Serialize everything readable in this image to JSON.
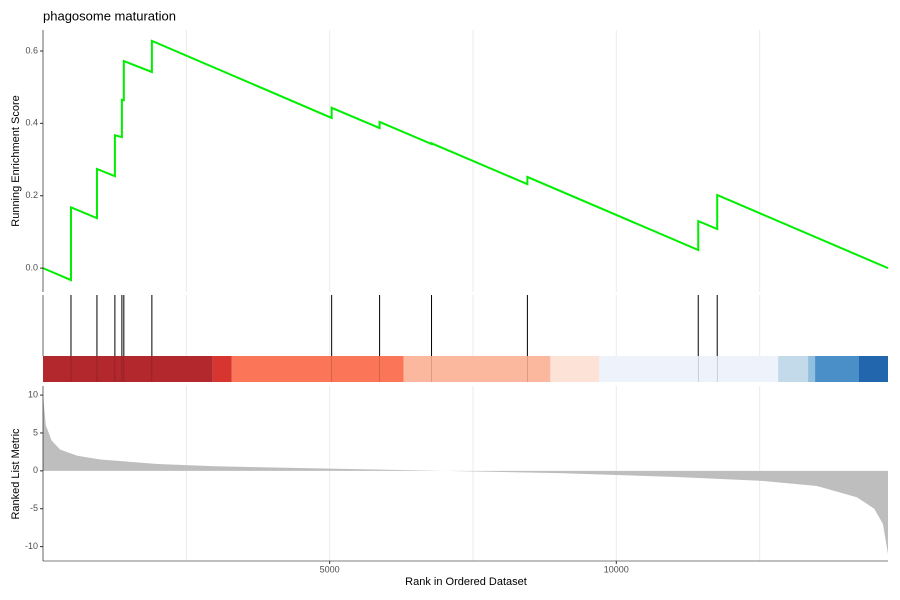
{
  "chart_data": [
    {
      "type": "line",
      "title": "phagosome maturation",
      "ylabel": "Running Enrichment Score",
      "color": "#00ee00",
      "x": [
        0,
        488,
        488,
        941,
        941,
        1254,
        1254,
        1376,
        1376,
        1410,
        1410,
        1899,
        1899,
        5035,
        5035,
        5871,
        5871,
        6777,
        6777,
        8449,
        8449,
        11429,
        11429,
        11760,
        11760,
        14739
      ],
      "y": [
        0.0,
        -0.033,
        0.168,
        0.138,
        0.274,
        0.254,
        0.367,
        0.362,
        0.465,
        0.464,
        0.572,
        0.542,
        0.628,
        0.415,
        0.443,
        0.387,
        0.404,
        0.343,
        0.345,
        0.232,
        0.252,
        0.05,
        0.13,
        0.108,
        0.202,
        0.0
      ],
      "xlim": [
        0,
        14739
      ],
      "ylim": [
        -0.066,
        0.658
      ],
      "yticks": [
        {
          "value": 0,
          "label": "0.0"
        },
        {
          "value": 0.2,
          "label": "0.2"
        },
        {
          "value": 0.4,
          "label": "0.4"
        },
        {
          "value": 0.6,
          "label": "0.6"
        }
      ],
      "x_grid": [
        2500,
        5000,
        7500,
        10000,
        12500
      ]
    },
    {
      "type": "rug",
      "x": [
        488,
        941,
        1254,
        1376,
        1410,
        1899,
        5035,
        5871,
        6777,
        8449,
        11429,
        11760
      ],
      "xlim": [
        0,
        14739
      ],
      "color": "#000000",
      "bins": [
        0,
        2962,
        3293,
        6289,
        8850,
        9704,
        12822,
        13345,
        13467,
        14233,
        14739
      ],
      "colors": [
        "#b2282d",
        "#d7352f",
        "#fb7559",
        "#fcb79f",
        "#fde3d7",
        "#eef3fb",
        "#c3daea",
        "#90bfe0",
        "#4a8fc7",
        "#2266ad"
      ],
      "x_grid": [
        2500,
        5000,
        7500,
        10000,
        12500
      ]
    },
    {
      "type": "area",
      "ylabel": "Ranked List Metric",
      "xlabel": "Rank in Ordered Dataset",
      "color": "#bebebe",
      "x": [
        0,
        50,
        150,
        300,
        600,
        1000,
        2000,
        3000,
        5000,
        7000,
        9000,
        11000,
        12500,
        13500,
        14200,
        14500,
        14650,
        14739
      ],
      "y": [
        10,
        6,
        4,
        2.8,
        2,
        1.5,
        0.9,
        0.6,
        0.3,
        0,
        -0.3,
        -0.8,
        -1.3,
        -2,
        -3.5,
        -5,
        -7,
        -11
      ],
      "xlim": [
        0,
        14739
      ],
      "ylim": [
        -11.9,
        11.2
      ],
      "yticks": [
        -10,
        -5,
        0,
        5,
        10
      ],
      "xticks": [
        5000,
        10000
      ],
      "x_grid": [
        2500,
        5000,
        7500,
        10000,
        12500
      ]
    }
  ]
}
